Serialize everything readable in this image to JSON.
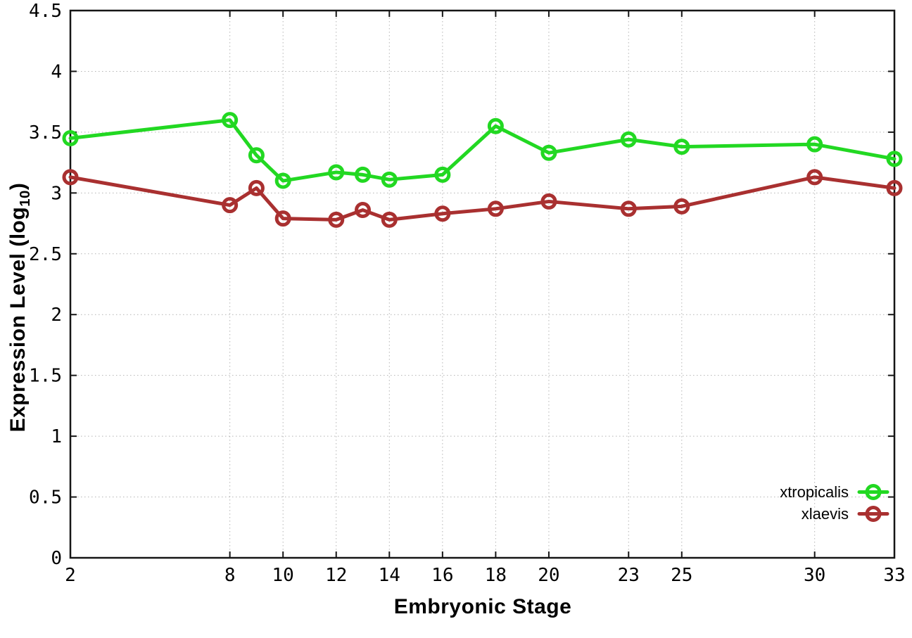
{
  "figure": {
    "background": "#ffffff",
    "border_color": "#161616",
    "grid_color": "#b4b4b4"
  },
  "labels": {
    "xlabel": "Embryonic Stage",
    "ylabel_prefix": "Expression Level (log",
    "ylabel_subscript": "10",
    "ylabel_suffix": ")"
  },
  "chart_data": {
    "type": "line",
    "title": "",
    "xlabel": "Embryonic Stage",
    "ylabel": "Expression Level (log10)",
    "x": [
      2,
      8,
      9,
      10,
      12,
      13,
      14,
      16,
      18,
      20,
      23,
      25,
      30,
      33
    ],
    "series": [
      {
        "name": "xtropicalis",
        "color": "#22d822",
        "marker": "open-circle",
        "values": [
          3.45,
          3.6,
          3.31,
          3.1,
          3.17,
          3.15,
          3.11,
          3.15,
          3.55,
          3.33,
          3.44,
          3.38,
          3.4,
          3.28
        ]
      },
      {
        "name": "xlaevis",
        "color": "#a93030",
        "marker": "open-circle",
        "values": [
          3.13,
          2.9,
          3.04,
          2.79,
          2.78,
          2.86,
          2.78,
          2.83,
          2.87,
          2.93,
          2.87,
          2.89,
          3.13,
          3.04
        ]
      }
    ],
    "xlim": [
      2,
      33
    ],
    "ylim": [
      0,
      4.5
    ],
    "xticks": {
      "values": [
        2,
        8,
        10,
        12,
        14,
        16,
        18,
        20,
        23,
        25,
        30,
        33
      ],
      "labels": [
        "2",
        "8",
        "10",
        "12",
        "14",
        "16",
        "18",
        "20",
        "23",
        "25",
        "30",
        "33"
      ]
    },
    "yticks": {
      "values": [
        0,
        0.5,
        1,
        1.5,
        2,
        2.5,
        3,
        3.5,
        4,
        4.5
      ],
      "labels": [
        "0",
        "0.5",
        "1",
        "1.5",
        "2",
        "2.5",
        "3",
        "3.5",
        "4",
        "4.5"
      ]
    },
    "grid": true,
    "tick_style": "inward-mirrored",
    "legend_position": "bottom-right",
    "line_width": 5
  }
}
